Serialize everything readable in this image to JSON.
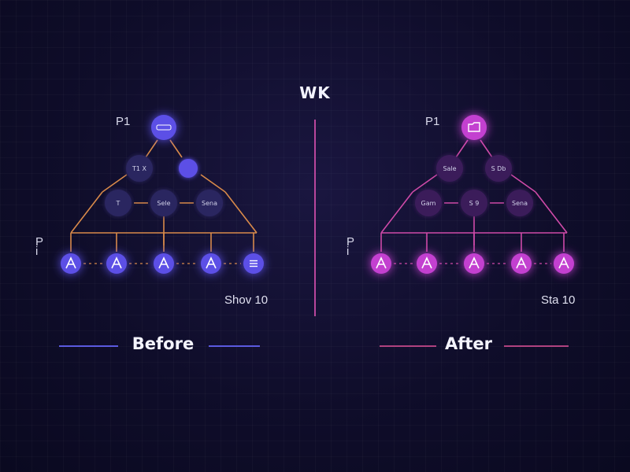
{
  "title": "WK",
  "colors": {
    "before_node": "#5b4fe6",
    "before_node_dim": "#2c2560",
    "before_edge": "#d98a4a",
    "after_node": "#c33fd0",
    "after_node_dim": "#3a1f5a",
    "after_edge": "#cf4aa8",
    "divider": "#b8469c",
    "before_line": "#5b5ae0",
    "after_line": "#b0427f"
  },
  "before": {
    "top_label": "P1",
    "side_label": "P\ni",
    "stat": "Shov 10",
    "footer": "Before",
    "root": {
      "text": "P1",
      "icon": "badge"
    },
    "level2": [
      {
        "text": "T1 X"
      },
      {
        "text": ""
      }
    ],
    "level3": [
      {
        "text": "T"
      },
      {
        "text": "Sele"
      },
      {
        "text": "Sena"
      }
    ],
    "leaves": [
      {
        "icon": "A"
      },
      {
        "icon": "A"
      },
      {
        "icon": "A"
      },
      {
        "icon": "A"
      },
      {
        "icon": "list"
      }
    ]
  },
  "after": {
    "top_label": "P1",
    "side_label": "P\ni",
    "stat": "Sta 10",
    "footer": "After",
    "root": {
      "text": "",
      "icon": "folder"
    },
    "level2": [
      {
        "text": "Sale"
      },
      {
        "text": "S Db"
      }
    ],
    "level3": [
      {
        "text": "Gam"
      },
      {
        "text": "S 9"
      },
      {
        "text": "Sena"
      }
    ],
    "leaves": [
      {
        "icon": "A"
      },
      {
        "icon": "A"
      },
      {
        "icon": "A"
      },
      {
        "icon": "A"
      },
      {
        "icon": "A"
      }
    ]
  }
}
